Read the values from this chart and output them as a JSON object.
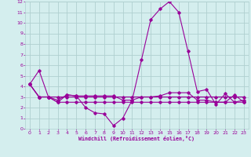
{
  "x": [
    0,
    1,
    2,
    3,
    4,
    5,
    6,
    7,
    8,
    9,
    10,
    11,
    12,
    13,
    14,
    15,
    16,
    17,
    18,
    19,
    20,
    21,
    22,
    23
  ],
  "series": [
    [
      4.2,
      5.5,
      3.0,
      2.7,
      3.2,
      3.1,
      2.0,
      1.5,
      1.4,
      0.3,
      1.0,
      2.7,
      6.5,
      10.3,
      11.3,
      12.0,
      11.0,
      7.3,
      3.5,
      3.7,
      2.3,
      3.3,
      2.5,
      2.7
    ],
    [
      4.2,
      3.0,
      3.0,
      2.5,
      3.2,
      3.1,
      3.1,
      3.1,
      3.1,
      3.1,
      2.7,
      2.7,
      3.0,
      3.0,
      3.1,
      3.4,
      3.4,
      3.4,
      2.7,
      2.7,
      2.5,
      2.5,
      3.2,
      2.5
    ],
    [
      4.2,
      3.0,
      3.0,
      2.5,
      2.5,
      2.5,
      2.5,
      2.5,
      2.5,
      2.5,
      2.5,
      2.5,
      2.5,
      2.5,
      2.5,
      2.5,
      2.5,
      2.5,
      2.5,
      2.5,
      2.5,
      2.5,
      2.5,
      2.5
    ],
    [
      4.2,
      3.0,
      3.0,
      3.0,
      3.0,
      3.0,
      3.0,
      3.0,
      3.0,
      3.0,
      3.0,
      3.0,
      3.0,
      3.0,
      3.0,
      3.0,
      3.0,
      3.0,
      3.0,
      3.0,
      3.0,
      3.0,
      3.0,
      3.0
    ]
  ],
  "line_color": "#990099",
  "bg_color": "#d4eeee",
  "grid_color": "#b0d0d0",
  "xlabel": "Windchill (Refroidissement éolien,°C)",
  "xlabel_color": "#990099",
  "tick_color": "#990099",
  "xlim": [
    -0.5,
    23.5
  ],
  "ylim": [
    0,
    12
  ],
  "yticks": [
    0,
    1,
    2,
    3,
    4,
    5,
    6,
    7,
    8,
    9,
    10,
    11,
    12
  ],
  "xticks": [
    0,
    1,
    2,
    3,
    4,
    5,
    6,
    7,
    8,
    9,
    10,
    11,
    12,
    13,
    14,
    15,
    16,
    17,
    18,
    19,
    20,
    21,
    22,
    23
  ]
}
